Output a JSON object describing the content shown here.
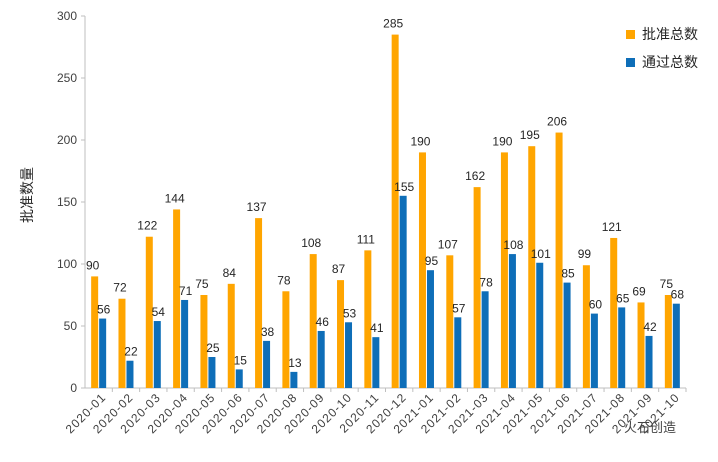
{
  "chart_data": {
    "type": "bar",
    "title": "",
    "xlabel": "",
    "ylabel": "批准数量",
    "ylim": [
      0,
      300
    ],
    "yticks": [
      0,
      50,
      100,
      150,
      200,
      250,
      300
    ],
    "grid": false,
    "legend_position": "top-right",
    "categories": [
      "2020-01",
      "2020-02",
      "2020-03",
      "2020-04",
      "2020-05",
      "2020-06",
      "2020-07",
      "2020-08",
      "2020-09",
      "2020-10",
      "2020-11",
      "2020-12",
      "2021-01",
      "2021-02",
      "2021-03",
      "2021-04",
      "2021-05",
      "2021-06",
      "2021-07",
      "2021-08",
      "2021-09",
      "2021-10"
    ],
    "series": [
      {
        "name": "批准总数",
        "color": "#FFA500",
        "values": [
          90,
          72,
          122,
          144,
          75,
          84,
          137,
          78,
          108,
          87,
          111,
          285,
          190,
          107,
          162,
          190,
          195,
          206,
          99,
          121,
          69,
          75
        ]
      },
      {
        "name": "通过总数",
        "color": "#0E6EB8",
        "values": [
          56,
          22,
          54,
          71,
          25,
          15,
          38,
          13,
          46,
          53,
          41,
          155,
          95,
          57,
          78,
          108,
          101,
          85,
          60,
          65,
          42,
          68
        ]
      }
    ]
  },
  "watermark": {
    "text": "火石创造"
  }
}
